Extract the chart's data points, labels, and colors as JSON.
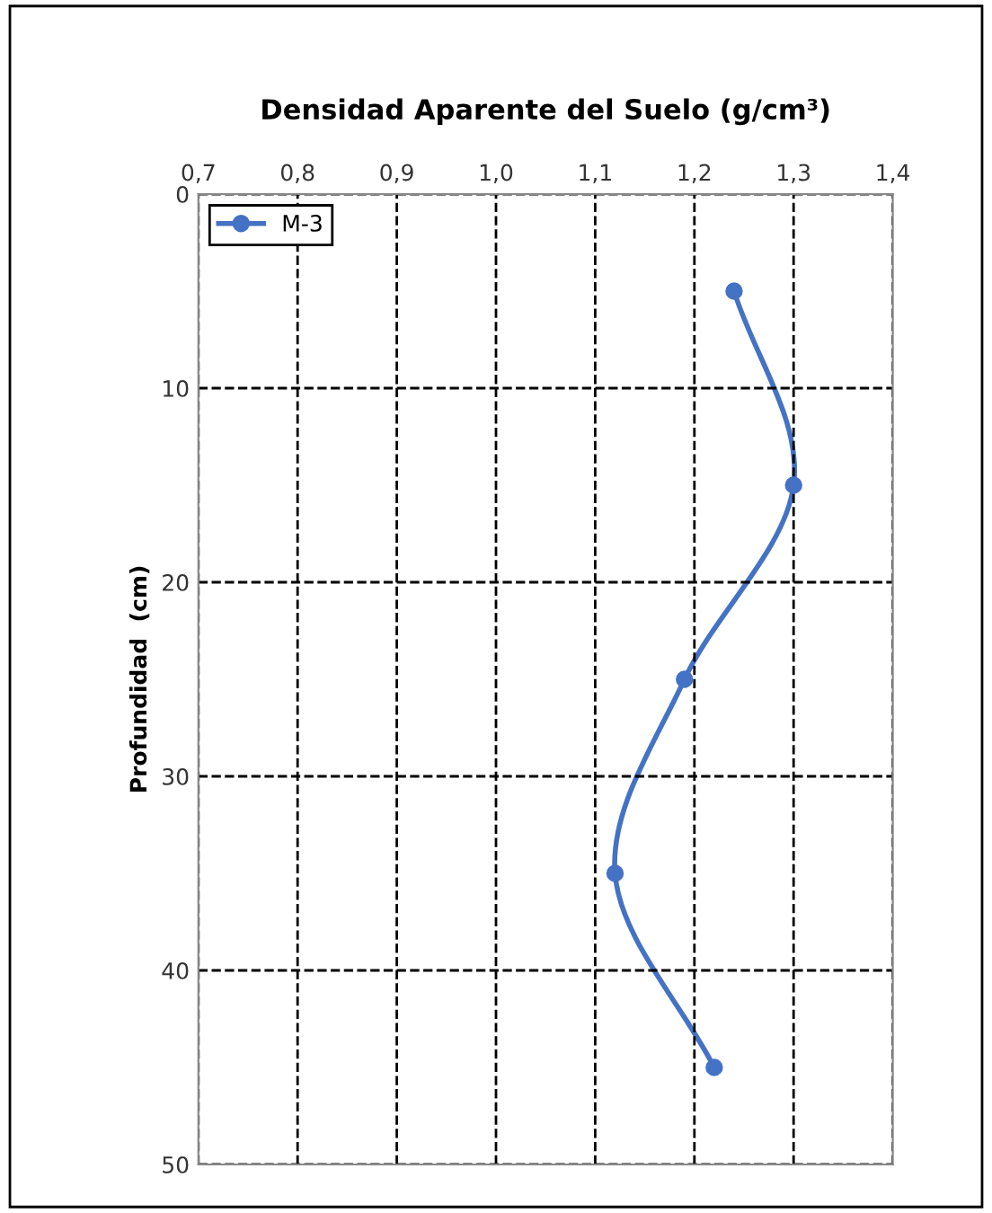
{
  "chart_data": {
    "type": "line",
    "title": "Densidad Aparente del Suelo (g/cm³)",
    "ylabel": "Profundidad  (cm)",
    "series": [
      {
        "name": "M-3",
        "color": "#4472c4",
        "x": [
          1.24,
          1.3,
          1.19,
          1.12,
          1.22
        ],
        "values": [
          5,
          15,
          25,
          35,
          45
        ]
      }
    ],
    "xlim": [
      0.7,
      1.4
    ],
    "xticks": [
      {
        "value": 0.7,
        "label": "0,7"
      },
      {
        "value": 0.8,
        "label": "0,8"
      },
      {
        "value": 0.9,
        "label": "0,9"
      },
      {
        "value": 1.0,
        "label": "1,0"
      },
      {
        "value": 1.1,
        "label": "1,1"
      },
      {
        "value": 1.2,
        "label": "1,2"
      },
      {
        "value": 1.3,
        "label": "1,3"
      },
      {
        "value": 1.4,
        "label": "1,4"
      }
    ],
    "ylim": [
      50,
      0
    ],
    "yticks": [
      0,
      10,
      20,
      30,
      40,
      50
    ],
    "grid": true,
    "legend": "top left",
    "marker": "circle",
    "line_style": "solid"
  }
}
